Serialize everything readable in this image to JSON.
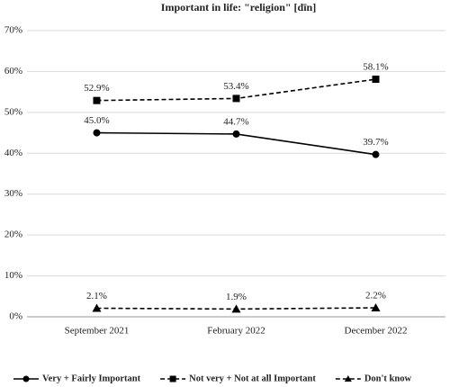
{
  "chart_data": {
    "type": "line",
    "title": "Important in life: \"religion\" [dīn]",
    "categories": [
      "September 2021",
      "February 2022",
      "December 2022"
    ],
    "series": [
      {
        "name": "Very + Fairly Important",
        "color": "#000000",
        "marker": "circle",
        "line_style": "solid",
        "values": [
          45.0,
          44.7,
          39.7
        ],
        "value_labels": [
          "45.0%",
          "44.7%",
          "39.7%"
        ]
      },
      {
        "name": "Not very + Not at all Important",
        "color": "#000000",
        "marker": "square",
        "line_style": "dashed",
        "values": [
          52.9,
          53.4,
          58.1
        ],
        "value_labels": [
          "52.9%",
          "53.4%",
          "58.1%"
        ]
      },
      {
        "name": "Don't know",
        "color": "#000000",
        "marker": "triangle",
        "line_style": "dashed",
        "values": [
          2.1,
          1.9,
          2.2
        ],
        "value_labels": [
          "2.1%",
          "1.9%",
          "2.2%"
        ]
      }
    ],
    "ylim": [
      0,
      70
    ],
    "yticks": [
      {
        "value": 0,
        "label": "0%"
      },
      {
        "value": 10,
        "label": "10%"
      },
      {
        "value": 20,
        "label": "20%"
      },
      {
        "value": 30,
        "label": "30%"
      },
      {
        "value": 40,
        "label": "40%"
      },
      {
        "value": 50,
        "label": "50%"
      },
      {
        "value": 60,
        "label": "60%"
      },
      {
        "value": 70,
        "label": "70%"
      }
    ],
    "grid": true,
    "legend": "bottom"
  }
}
